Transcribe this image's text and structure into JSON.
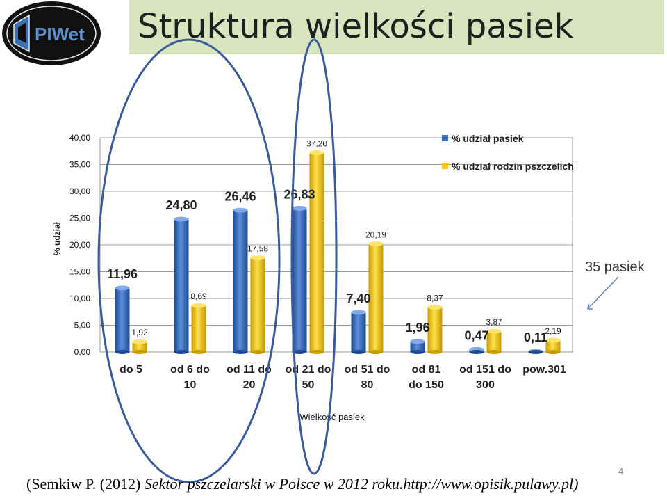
{
  "logo": {
    "text": "PIWet"
  },
  "title": "Struktura wielkości pasiek",
  "chart_data": {
    "type": "bar",
    "categories": [
      [
        "do 5"
      ],
      [
        "od 6 do",
        "10"
      ],
      [
        "od 11 do",
        "20"
      ],
      [
        "od 21 do",
        "50"
      ],
      [
        "od 51 do",
        "80"
      ],
      [
        "od 81",
        "do 150"
      ],
      [
        "od 151 do",
        "300"
      ],
      [
        "pow.301"
      ]
    ],
    "series": [
      {
        "name": "% udział pasiek",
        "values": [
          11.96,
          24.8,
          26.46,
          26.83,
          7.4,
          1.96,
          0.47,
          0.11
        ],
        "labels": [
          "11,96",
          "24,80",
          "26,46",
          "26,83",
          "7,40",
          "1,96",
          "0,47",
          "0,11"
        ],
        "color": "#3d6cc0"
      },
      {
        "name": "% udział rodzin pszczelich",
        "values": [
          1.92,
          8.69,
          17.58,
          37.2,
          20.19,
          8.37,
          3.87,
          2.19
        ],
        "labels": [
          "1,92",
          "8,69",
          "17,58",
          "37,20",
          "20,19",
          "8,37",
          "3,87",
          "2,19"
        ],
        "color": "#f5c400"
      }
    ],
    "yticks": [
      "0,00",
      "5,00",
      "10,00",
      "15,00",
      "20,00",
      "25,00",
      "30,00",
      "35,00",
      "40,00"
    ],
    "ylim": [
      0,
      40
    ],
    "xlabel": "Wielkość pasiek",
    "ylabel": "% udział",
    "grid": true,
    "legend": "top-right"
  },
  "annotation": "35 pasiek",
  "citation": {
    "prefix": "(Semkiw P. (2012) ",
    "italic": "Sektor pszczelarski w Polsce w 2012 roku.http://www.opisik.pulawy.pl)"
  },
  "page_number": "4",
  "colors": {
    "blue": "#3d6cc0",
    "gold": "#f5c400",
    "ellipse": "#3a5a9c",
    "title_bg": "#d7e4bd"
  }
}
